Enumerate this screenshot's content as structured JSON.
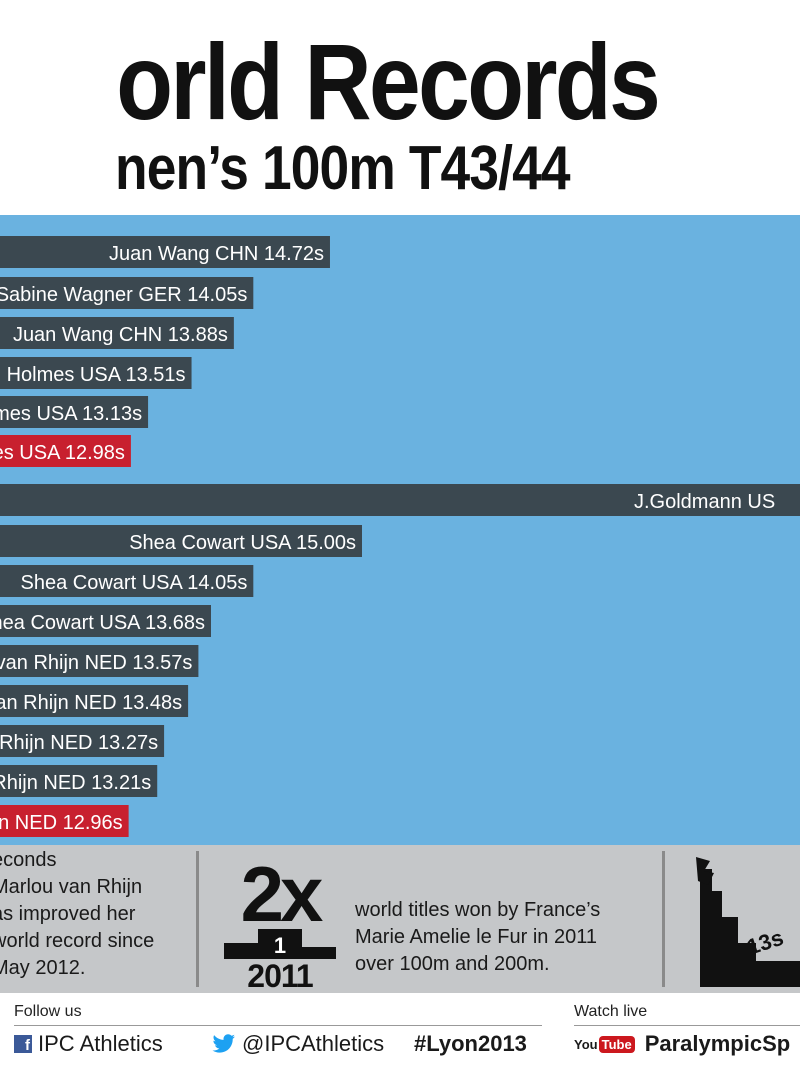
{
  "header": {
    "title": "orld Records",
    "subtitle": "nen’s 100m T43/44"
  },
  "chart_data": {
    "type": "bar",
    "orientation": "horizontal",
    "categories": [
      "Juan Wang CHN",
      "Sabine Wagner GER",
      "Juan Wang CHN",
      "April Holmes USA",
      "April Holmes USA",
      "April Holmes USA",
      "J.Goldmann US",
      "Shea Cowart USA",
      "Shea Cowart USA",
      "Shea Cowart USA",
      "Marlou van Rhijn NED",
      "Marlou van Rhijn NED",
      "Marlou van Rhijn NED",
      "Marlou van Rhijn NED",
      "u van Rhijn NED"
    ],
    "series": [
      {
        "values": [
          14.72,
          14.05,
          13.88,
          13.51,
          13.13,
          12.98,
          null,
          15.0,
          14.05,
          13.68,
          13.57,
          13.48,
          13.27,
          13.21,
          12.96
        ],
        "labels": [
          "14.72s",
          "14.05s",
          "13.88s",
          "13.51s",
          "13.13s",
          "12.98s",
          "",
          "15.00s",
          "14.05s",
          "13.68s",
          "13.57s",
          "13.48s",
          "13.27s",
          "13.21s",
          "12.96s"
        ]
      }
    ],
    "highlighted": [
      5,
      14
    ],
    "colors": {
      "bar": "#3b4850",
      "highlight": "#c8202f",
      "background": "#6ab2e0"
    },
    "title": "",
    "xlabel": "",
    "ylabel": ""
  },
  "stats": {
    "left_lines": [
      "econds",
      "Marlou van Rhijn",
      "as improved her",
      "world record since",
      "May 2012."
    ],
    "podium_big": "2x",
    "podium_rank": "1",
    "podium_year": "2011",
    "mid_lines": [
      "world titles won by France’s",
      "Marie Amelie le Fur in 2011",
      "over 100m and 200m."
    ],
    "stairs_text": "13s"
  },
  "footer": {
    "follow_label": "Follow us",
    "facebook_icon": "facebook-icon",
    "facebook_text": "IPC Athletics",
    "twitter_icon": "twitter-icon",
    "twitter_text": "@IPCAthletics",
    "hashtag": "#Lyon2013",
    "watch_label": "Watch live",
    "youtube_you": "You",
    "youtube_tube": "Tube",
    "channel": "ParalympicSp"
  }
}
